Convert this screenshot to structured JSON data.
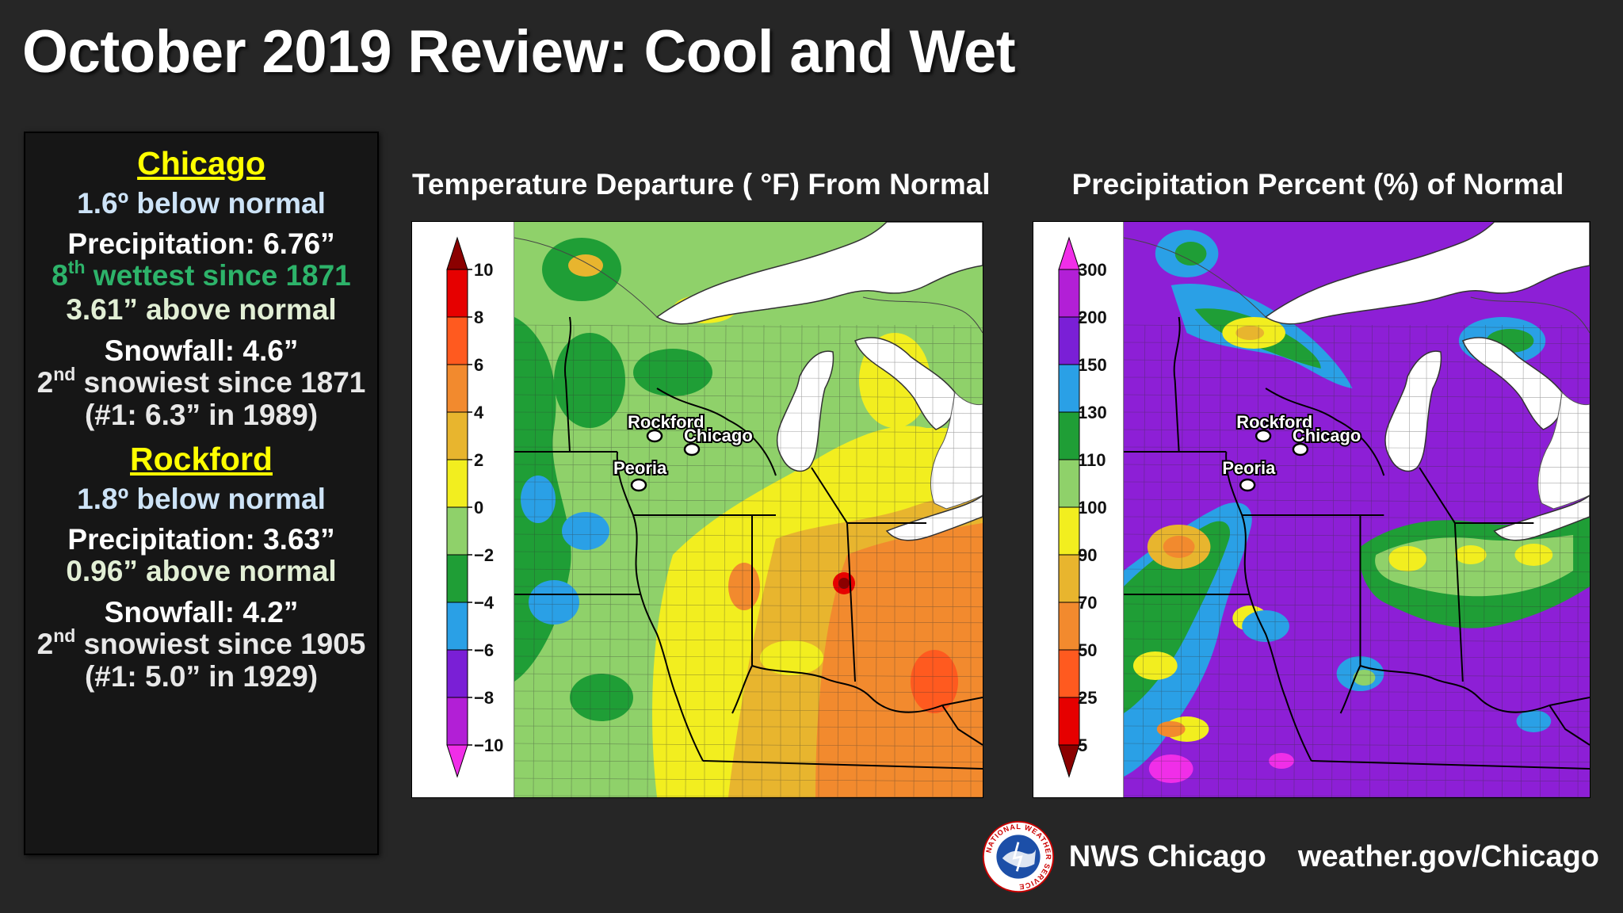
{
  "title": "October 2019 Review:  Cool and Wet",
  "stats": {
    "chicago": {
      "name": "Chicago",
      "temp": "1.6º below normal",
      "precip": "Precipitation:  6.76”",
      "wet_rank_num": "8",
      "wet_rank_sup": "th",
      "wet_rank_rest": " wettest since 1871",
      "precip_above": "3.61” above normal",
      "snow": "Snowfall: 4.6”",
      "snow_rank_num": "2",
      "snow_rank_sup": "nd",
      "snow_rank_rest": " snowiest since 1871",
      "snow_record": "(#1: 6.3” in 1989)"
    },
    "rockford": {
      "name": "Rockford",
      "temp": "1.8º below normal",
      "precip": "Precipitation:  3.63”",
      "precip_above": "0.96” above normal",
      "snow": "Snowfall: 4.2”",
      "snow_rank_num": "2",
      "snow_rank_sup": "nd",
      "snow_rank_rest": " snowiest since 1905",
      "snow_record": "(#1: 5.0” in 1929)"
    }
  },
  "temp_map": {
    "title": "Temperature Departure ( °F)  From Normal",
    "legend_labels": [
      "10",
      "8",
      "6",
      "4",
      "2",
      "0",
      "−2",
      "−4",
      "−6",
      "−8",
      "−10"
    ],
    "legend_colors": [
      "#8b0000",
      "#e60000",
      "#ff5a1f",
      "#f28a2e",
      "#e8b52e",
      "#f2ee1f",
      "#8fd16a",
      "#1f9e36",
      "#2aa0e6",
      "#7a1fd6",
      "#b21fd6",
      "#f02ee8"
    ],
    "cities": [
      "Rockford",
      "Chicago",
      "Peoria"
    ]
  },
  "precip_map": {
    "title": "Precipitation Percent (%) of Normal",
    "legend_labels": [
      "300",
      "200",
      "150",
      "130",
      "110",
      "100",
      "90",
      "70",
      "50",
      "25",
      "5"
    ],
    "legend_colors": [
      "#f02ee8",
      "#b21fd6",
      "#7a1fd6",
      "#2aa0e6",
      "#1f9e36",
      "#8fd16a",
      "#f2ee1f",
      "#e8b52e",
      "#f28a2e",
      "#ff5a1f",
      "#e60000",
      "#8b0000"
    ],
    "cities": [
      "Rockford",
      "Chicago",
      "Peoria"
    ]
  },
  "footer": {
    "name": "NWS Chicago",
    "url": "weather.gov/Chicago",
    "logo_text": "NATIONAL WEATHER SERVICE"
  },
  "colors": {
    "background": "#262626",
    "highlight_yellow": "#ffff00",
    "rank_green": "#2db36a",
    "light_blue": "#cde3f7"
  }
}
